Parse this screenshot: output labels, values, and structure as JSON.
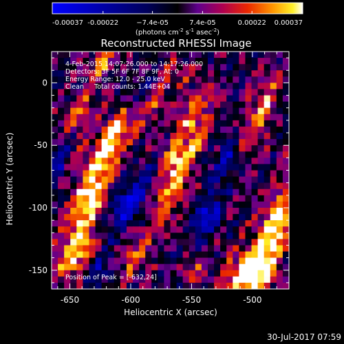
{
  "chart_data": {
    "type": "heatmap",
    "title": "Reconstructed RHESSI Image",
    "xlabel": "Heliocentric X (arcsec)",
    "ylabel": "Heliocentric Y (arcsec)",
    "xlim": [
      -665,
      -470
    ],
    "ylim": [
      -165,
      25
    ],
    "x_ticks": [
      -650,
      -600,
      -550,
      -500
    ],
    "x_tick_labels": [
      "-650",
      "-600",
      "-550",
      "-500"
    ],
    "y_ticks": [
      0,
      -50,
      -100,
      -150
    ],
    "y_tick_labels": [
      "0",
      "-50",
      "-100",
      "-150"
    ],
    "colorbar": {
      "range": [
        -0.00037,
        0.00037
      ],
      "ticks": [
        -0.00037,
        -0.00022,
        -7.4e-05,
        7.4e-05,
        0.00022,
        0.00037
      ],
      "tick_labels": [
        "-0.00037",
        "-0.00022",
        "−7.4e-05",
        "7.4e-05",
        "0.00022",
        "0.00037"
      ],
      "units_label": "(photons cm",
      "units_exp1": "-2",
      "units_mid": " s",
      "units_exp2": "-1",
      "units_end": " asec",
      "units_exp3": "-2",
      "units_close": ")"
    },
    "annotations": [
      "4-Feb-2015 14:07:26.000 to 14:17:26.000",
      "Detectors: 3F 5F 6F 7F 8F 9F, At: 0",
      "Energy Range: 12.0 - 25.0 keV",
      "Clean     Total counts: 1.44E+04"
    ],
    "peak_label": "Position of Peak = [-632,24]",
    "peak_position": [
      -632,
      24
    ],
    "image_grid": {
      "nx": 38,
      "ny": 38
    },
    "hot_regions": [
      {
        "x": -632,
        "y": -85,
        "sx": 10,
        "sy": 32,
        "amp": 0.00037
      },
      {
        "x": -642,
        "y": -30,
        "sx": 8,
        "sy": 18,
        "amp": 0.00022
      },
      {
        "x": -563,
        "y": -72,
        "sx": 10,
        "sy": 28,
        "amp": 0.00035
      },
      {
        "x": -612,
        "y": -40,
        "sx": 8,
        "sy": 12,
        "amp": 0.00025
      },
      {
        "x": -582,
        "y": -20,
        "sx": 7,
        "sy": 10,
        "amp": 0.00018
      },
      {
        "x": -545,
        "y": -20,
        "sx": 8,
        "sy": 12,
        "amp": 0.0002
      },
      {
        "x": -495,
        "y": -28,
        "sx": 8,
        "sy": 22,
        "amp": 0.00026
      },
      {
        "x": -483,
        "y": -120,
        "sx": 10,
        "sy": 35,
        "amp": 0.00037
      },
      {
        "x": -505,
        "y": -152,
        "sx": 14,
        "sy": 12,
        "amp": 0.0003
      },
      {
        "x": -645,
        "y": -138,
        "sx": 10,
        "sy": 14,
        "amp": 0.00026
      },
      {
        "x": -598,
        "y": -135,
        "sx": 9,
        "sy": 14,
        "amp": 0.0002
      },
      {
        "x": -548,
        "y": -150,
        "sx": 8,
        "sy": 10,
        "amp": 0.00015
      },
      {
        "x": -622,
        "y": 15,
        "sx": 8,
        "sy": 8,
        "amp": 0.00022
      },
      {
        "x": -560,
        "y": 8,
        "sx": 9,
        "sy": 8,
        "amp": 0.00015
      }
    ],
    "cold_regions": [
      {
        "x": -600,
        "y": -95,
        "sx": 10,
        "sy": 18,
        "amp": -0.0003
      },
      {
        "x": -538,
        "y": -105,
        "sx": 8,
        "sy": 14,
        "amp": -0.00025
      },
      {
        "x": -655,
        "y": -55,
        "sx": 6,
        "sy": 14,
        "amp": -0.00022
      },
      {
        "x": -520,
        "y": -60,
        "sx": 8,
        "sy": 10,
        "amp": -0.0002
      },
      {
        "x": -625,
        "y": -150,
        "sx": 8,
        "sy": 10,
        "amp": -0.00018
      },
      {
        "x": -590,
        "y": -5,
        "sx": 6,
        "sy": 8,
        "amp": -0.00015
      }
    ]
  },
  "footer": {
    "timestamp": "30-Jul-2017 07:59"
  }
}
